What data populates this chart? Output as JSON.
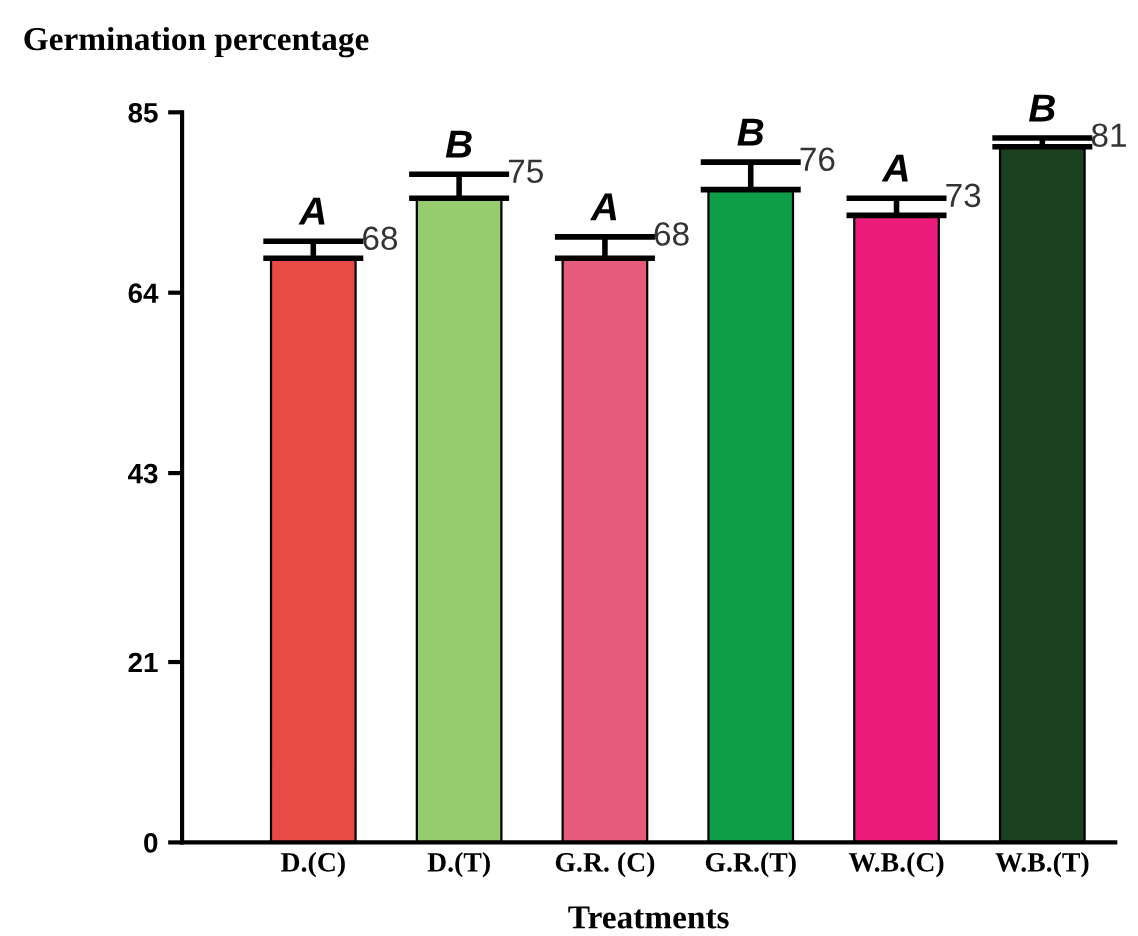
{
  "chart_data": {
    "type": "bar",
    "title": "Germination percentage",
    "xlabel": "Treatments",
    "categories": [
      "D.(C)",
      "D.(T)",
      "G.R. (C)",
      "G.R.(T)",
      "W.B.(C)",
      "W.B.(T)"
    ],
    "values": [
      68,
      75,
      68,
      76,
      73,
      81
    ],
    "errors": [
      2,
      2.8,
      2.5,
      3.2,
      2,
      1
    ],
    "colors": [
      "#e84a45",
      "#97cc6e",
      "#e65a7c",
      "#0f9e48",
      "#ec1c7c",
      "#1b4121"
    ],
    "data_labels": true,
    "annotations": [
      {
        "text": "A",
        "x": "D.(C)",
        "y": 70
      },
      {
        "text": "B",
        "x": "D.(T)",
        "y": 77.8
      },
      {
        "text": "A",
        "x": "G.R. (C)",
        "y": 70.5
      },
      {
        "text": "B",
        "x": "G.R.(T)",
        "y": 79.2
      },
      {
        "text": "A",
        "x": "W.B.(C)",
        "y": 75
      },
      {
        "text": "B",
        "x": "W.B.(T)",
        "y": 82
      }
    ],
    "ylim": [
      0,
      85
    ],
    "yticks": [
      0,
      21,
      43,
      64,
      85
    ],
    "grid": false,
    "legend": false
  }
}
